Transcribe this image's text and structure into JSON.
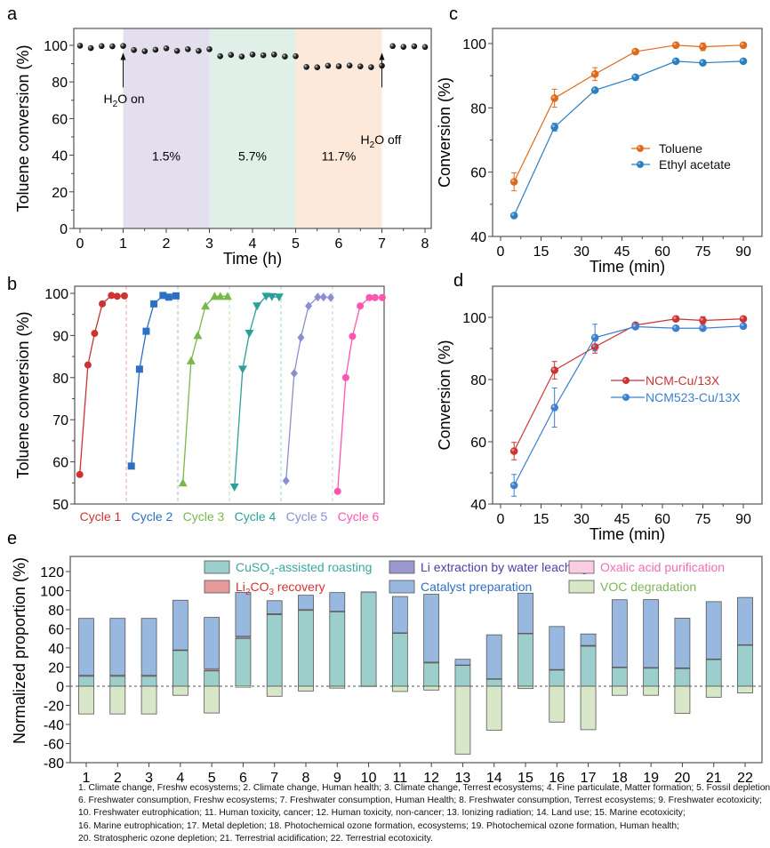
{
  "chart_data": [
    {
      "id": "a",
      "panel_label": "a",
      "type": "scatter",
      "title": "",
      "xlabel": "Time (h)",
      "ylabel": "Toluene conversion (%)",
      "xlim": [
        0,
        8
      ],
      "ylim": [
        0,
        110
      ],
      "xticks": [
        0,
        1,
        2,
        3,
        4,
        5,
        6,
        7,
        8
      ],
      "yticks": [
        0,
        20,
        40,
        60,
        80,
        100
      ],
      "regions": [
        {
          "x0": 1,
          "x1": 3,
          "label": "1.5%",
          "color": "#e4dfee"
        },
        {
          "x0": 3,
          "x1": 5,
          "label": "5.7%",
          "color": "#e0f0e8"
        },
        {
          "x0": 5,
          "x1": 7,
          "label": "11.7%",
          "color": "#fde9d9"
        }
      ],
      "annotations": [
        {
          "x": 1,
          "text_main": "H",
          "text_sub": "2",
          "text_rest": "O on"
        },
        {
          "x": 7,
          "text_main": "H",
          "text_sub": "2",
          "text_rest": "O off"
        }
      ],
      "series": [
        {
          "name": "Toluene conversion",
          "color": "#111111",
          "x": [
            0,
            0.25,
            0.5,
            0.75,
            1,
            1.25,
            1.5,
            1.75,
            2,
            2.25,
            2.5,
            2.75,
            3,
            3.25,
            3.5,
            3.75,
            4,
            4.25,
            4.5,
            4.75,
            5,
            5.25,
            5.5,
            5.75,
            6,
            6.25,
            6.5,
            6.75,
            7,
            7.25,
            7.5,
            7.75,
            8
          ],
          "y": [
            99.8,
            98.5,
            99.6,
            99.5,
            99.7,
            97.5,
            96.8,
            97.6,
            98.4,
            97.0,
            97.9,
            97.0,
            97.9,
            94.1,
            94.8,
            93.9,
            95.0,
            94.6,
            95.0,
            93.9,
            94.1,
            88.2,
            88.0,
            88.9,
            88.6,
            89.0,
            88.5,
            88.1,
            88.9,
            99.6,
            99.2,
            99.5,
            99.1
          ]
        }
      ]
    },
    {
      "id": "b",
      "panel_label": "b",
      "type": "line",
      "xlabel": "",
      "ylabel": "Toluene conversion (%)",
      "ylim": [
        50,
        102
      ],
      "yticks": [
        50,
        60,
        70,
        80,
        90,
        100
      ],
      "series": [
        {
          "name": "Cycle 1",
          "marker": "circle",
          "color": "#cc3333",
          "values": [
            57,
            83,
            90.5,
            97.5,
            99.5,
            99.3,
            99.4
          ]
        },
        {
          "name": "Cycle 2",
          "marker": "square",
          "color": "#2e6fc4",
          "values": [
            59,
            82,
            91,
            97.5,
            99.5,
            99.1,
            99.4
          ]
        },
        {
          "name": "Cycle 3",
          "marker": "triangle-up",
          "color": "#78b84a",
          "values": [
            55,
            84,
            90,
            97,
            99.3,
            99.3,
            99.3
          ]
        },
        {
          "name": "Cycle 4",
          "marker": "triangle-down",
          "color": "#2aa198",
          "values": [
            54,
            82,
            90.5,
            97,
            99.3,
            99.2,
            99.1
          ]
        },
        {
          "name": "Cycle 5",
          "marker": "diamond",
          "color": "#8b8fd0",
          "values": [
            55.5,
            81,
            89.5,
            97,
            99.1,
            99.1,
            99.0
          ]
        },
        {
          "name": "Cycle 6",
          "marker": "circle",
          "color": "#ff55b0",
          "values": [
            53,
            80,
            89.8,
            97,
            99.0,
            99.0,
            99.0
          ]
        }
      ]
    },
    {
      "id": "c",
      "panel_label": "c",
      "type": "line",
      "xlabel": "Time (min)",
      "ylabel": "Conversion (%)",
      "xlim": [
        -3,
        95
      ],
      "ylim": [
        40,
        108
      ],
      "xticks": [
        0,
        15,
        30,
        45,
        60,
        75,
        90
      ],
      "yticks": [
        40,
        60,
        80,
        100
      ],
      "legend": "center-right",
      "x": [
        5,
        20,
        35,
        50,
        65,
        75,
        90
      ],
      "series": [
        {
          "name": "Toluene",
          "color": "#e0681b",
          "values": [
            57,
            83,
            90.5,
            97.5,
            99.5,
            99,
            99.5
          ],
          "errors": [
            2.8,
            2.8,
            2.0,
            0.5,
            0.5,
            1.2,
            0.5
          ]
        },
        {
          "name": "Ethyl acetate",
          "color": "#2a7fc1",
          "values": [
            46.5,
            74,
            85.5,
            89.5,
            94.5,
            94,
            94.5
          ],
          "errors": [
            0.5,
            1.2,
            0.5,
            0.5,
            0.5,
            0.5,
            0.5
          ]
        }
      ]
    },
    {
      "id": "d",
      "panel_label": "d",
      "type": "line",
      "xlabel": "Time (min)",
      "ylabel": "Conversion (%)",
      "xlim": [
        -3,
        95
      ],
      "ylim": [
        40,
        110
      ],
      "xticks": [
        0,
        15,
        30,
        45,
        60,
        75,
        90
      ],
      "yticks": [
        40,
        60,
        80,
        100
      ],
      "legend": "center-right",
      "x": [
        5,
        20,
        35,
        50,
        65,
        75,
        90
      ],
      "series": [
        {
          "name": "NCM-Cu/13X",
          "color": "#cc3333",
          "values": [
            57,
            83,
            90.5,
            97.5,
            99.5,
            99,
            99.5
          ],
          "errors": [
            2.8,
            2.8,
            2.0,
            0.5,
            0.5,
            1.2,
            0.5
          ]
        },
        {
          "name": "NCM523-Cu/13X",
          "color": "#3a7fd0",
          "values": [
            46,
            71,
            93.5,
            97,
            96.5,
            96.5,
            97.2
          ],
          "errors": [
            3.5,
            6.3,
            4.3,
            0.6,
            0.5,
            0.5,
            0.5
          ]
        }
      ]
    },
    {
      "id": "e",
      "panel_label": "e",
      "type": "bar",
      "stacked": true,
      "xlabel": "",
      "ylabel": "Normalized proportion (%)",
      "ylim": [
        -80,
        130
      ],
      "yticks": [
        -80,
        -60,
        -40,
        -20,
        0,
        20,
        40,
        60,
        80,
        100,
        120
      ],
      "categories": [
        "1",
        "2",
        "3",
        "4",
        "5",
        "6",
        "7",
        "8",
        "9",
        "10",
        "11",
        "12",
        "13",
        "14",
        "15",
        "16",
        "17",
        "18",
        "19",
        "20",
        "21",
        "22"
      ],
      "legend": "top",
      "series": [
        {
          "name": "CuSO4-assisted roasting",
          "name_main": "CuSO",
          "name_sub": "4",
          "name_rest": "-assisted roasting",
          "color": "#9ccfcb",
          "text_color": "#3aa6a0",
          "values": [
            10.5,
            10.5,
            10.5,
            37.5,
            16,
            50,
            75,
            79.5,
            78,
            98,
            55.5,
            24.5,
            22,
            7.5,
            55,
            17,
            42,
            19.5,
            19,
            18.5,
            28,
            43
          ]
        },
        {
          "name": "Li2CO3 recovery",
          "name_main": "Li",
          "name_sub": "2",
          "name_mid": "CO",
          "name_sub2": "3",
          "name_rest": " recovery",
          "color": "#e79a9a",
          "text_color": "#d63030",
          "values": [
            0.3,
            0.3,
            0.3,
            0.2,
            0.8,
            0.8,
            0.3,
            0.2,
            0.2,
            0,
            0.2,
            0.2,
            0.1,
            0.1,
            0.2,
            0.2,
            0.2,
            0.2,
            0.2,
            0.2,
            0.2,
            0.2
          ]
        },
        {
          "name": "Li extraction by water leaching",
          "color": "#9b98cf",
          "text_color": "#4b3fa8",
          "values": [
            0.6,
            0.6,
            0.6,
            0.3,
            0.3,
            1.2,
            0.5,
            0.5,
            0.3,
            0,
            0.2,
            0.5,
            0.1,
            0.2,
            0.2,
            0.3,
            0.5,
            0.3,
            0.4,
            0.5,
            0.3,
            0.2
          ]
        },
        {
          "name": "Oxalic acid purification",
          "color": "#fbcde5",
          "text_color": "#f06cb8",
          "values": [
            0,
            0,
            0,
            0,
            1.2,
            0.3,
            0,
            0,
            0,
            0,
            0,
            0,
            0,
            0,
            0,
            0,
            0,
            0,
            0,
            0,
            0,
            0
          ]
        },
        {
          "name": "Catalyst preparation",
          "color": "#98b8e0",
          "text_color": "#2f6fc0",
          "values": [
            59.6,
            59.6,
            59.6,
            52,
            53.7,
            46,
            13.7,
            15,
            19.5,
            1,
            38,
            71,
            6,
            46,
            42,
            45,
            12,
            70.5,
            71,
            52,
            60,
            49.5
          ]
        },
        {
          "name": "VOC degradation",
          "color": "#d8e7c8",
          "text_color": "#7fb55a",
          "values": [
            -29,
            -29,
            -29,
            -9.5,
            -28,
            -1.5,
            -10.5,
            -5,
            -2,
            -0.3,
            -5.5,
            -4,
            -71,
            -46,
            -2.5,
            -37.5,
            -45.5,
            -9.5,
            -9.5,
            -28.5,
            -11.5,
            -7
          ]
        }
      ]
    }
  ],
  "footnote": {
    "lines": [
      "1. Climate change, Freshw ecosystems; 2. Climate change, Human health; 3. Climate change, Terrest ecosystems; 4. Fine particulate, Matter formation; 5. Fossil depletion;",
      "6. Freshwater consumption, Freshw ecosystems; 7. Freshwater consumption, Human Health; 8. Freshwater consumption, Terrest ecosystems;  9. Freshwater ecotoxicity;",
      "10. Freshwater eutrophication; 11. Human toxicity, cancer; 12. Human toxicity, non-cancer; 13. Ionizing radiation; 14. Land use; 15. Marine ecotoxicity;",
      "16. Marine eutrophication; 17. Metal depletion; 18. Photochemical ozone formation, ecosystems; 19. Photochemical ozone formation, Human health;",
      "20. Stratospheric ozone depletion; 21. Terrestrial acidification; 22. Terrestrial ecotoxicity."
    ]
  }
}
